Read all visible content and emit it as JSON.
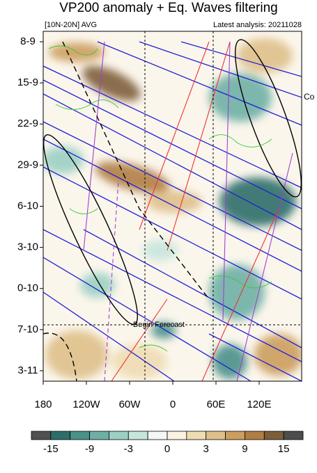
{
  "header": {
    "title": "VP200 anomaly + Eq. Waves filtering",
    "left": "[10N-20N] AVG",
    "right": "Latest analysis: 20211028"
  },
  "y_labels": [
    "8-9",
    "15-9",
    "22-9",
    "29-9",
    "6-10",
    "3-10",
    "0-10",
    "7-10",
    "3-11"
  ],
  "x_labels": [
    "180",
    "120W",
    "60W",
    "0",
    "60E",
    "120E"
  ],
  "annotations": {
    "forecast": "Begin Forecast",
    "edge": "Co"
  },
  "colorbar": {
    "colors": [
      "#505050",
      "#2e6e6a",
      "#4a918a",
      "#6fb0a6",
      "#9cd0c5",
      "#c6e6dd",
      "#f3f8f6",
      "#fbf3e2",
      "#efdcb3",
      "#dfc08a",
      "#cc9e5f",
      "#b07e44",
      "#7e5e3a",
      "#4d4d4d"
    ],
    "labels": [
      -15,
      -9,
      -3,
      0,
      3,
      9,
      15
    ]
  }
}
